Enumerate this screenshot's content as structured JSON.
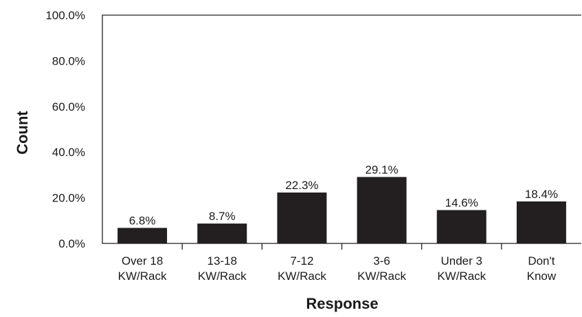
{
  "chart_data": {
    "type": "bar",
    "title": "",
    "xlabel": "Response",
    "ylabel": "Count",
    "ylim": [
      0,
      100
    ],
    "y_ticks": [
      "0.0%",
      "20.0%",
      "40.0%",
      "60.0%",
      "80.0%",
      "100.0%"
    ],
    "y_tick_values": [
      0,
      20,
      40,
      60,
      80,
      100
    ],
    "categories": [
      [
        "Over 18",
        "KW/Rack"
      ],
      [
        "13-18",
        "KW/Rack"
      ],
      [
        "7-12",
        "KW/Rack"
      ],
      [
        "3-6",
        "KW/Rack"
      ],
      [
        "Under 3",
        "KW/Rack"
      ],
      [
        "Don't",
        "Know"
      ]
    ],
    "values": [
      6.8,
      8.7,
      22.3,
      29.1,
      14.6,
      18.4
    ],
    "value_labels": [
      "6.8%",
      "8.7%",
      "22.3%",
      "29.1%",
      "14.6%",
      "18.4%"
    ],
    "grid": false,
    "legend": "none",
    "bar_color": "#231f20"
  }
}
